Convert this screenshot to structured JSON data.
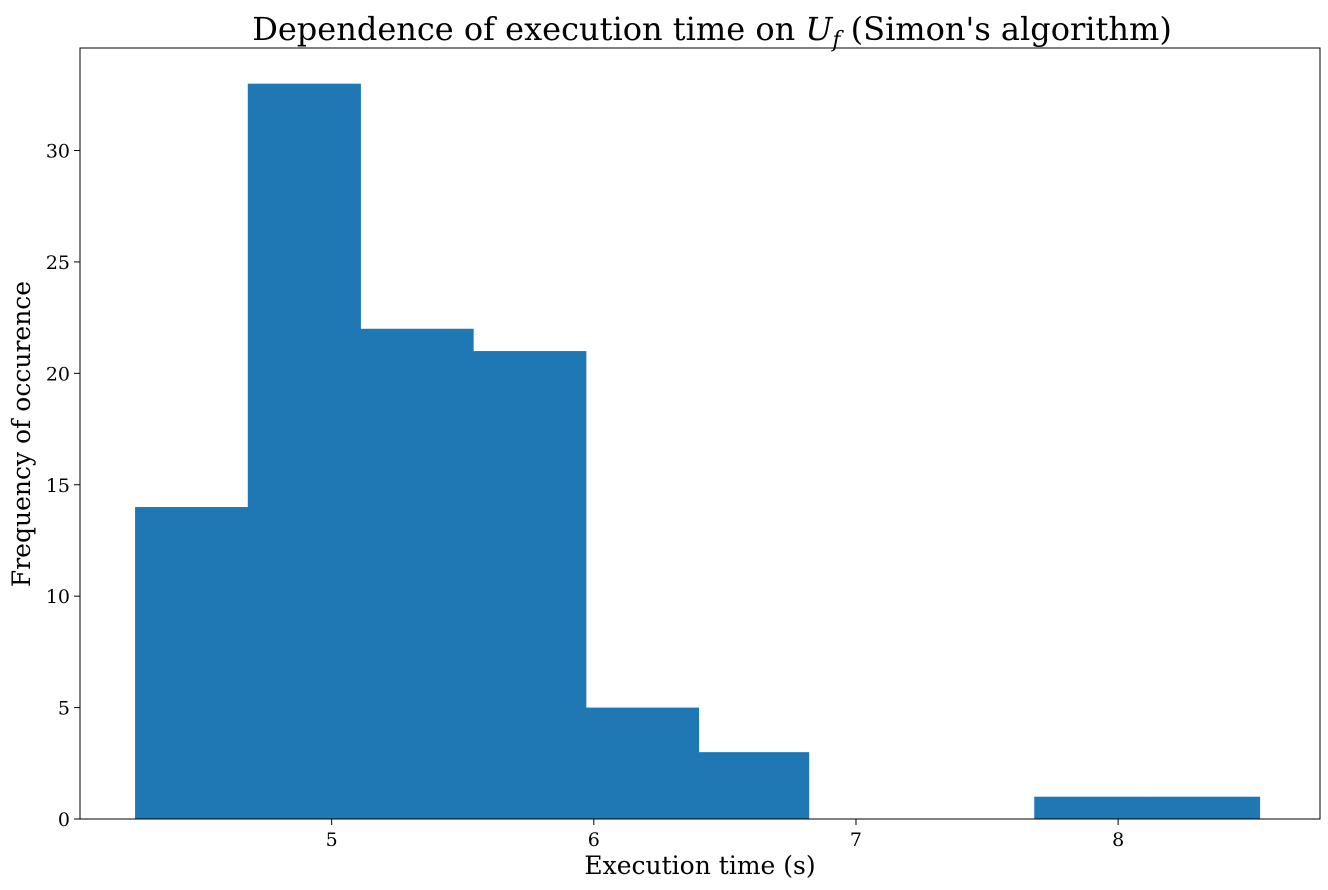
{
  "chart_data": {
    "type": "bar",
    "title_prefix": "Dependence of execution time on ",
    "title_math_main": "U",
    "title_math_sub": "f",
    "title_suffix": " (Simon's algorithm)",
    "xlabel": "Execution time (s)",
    "ylabel": "Frequency of occurence",
    "xlim": [
      4.04,
      8.77
    ],
    "ylim": [
      0,
      34.6
    ],
    "x_ticks": [
      5,
      6,
      7,
      8
    ],
    "y_ticks": [
      0,
      5,
      10,
      15,
      20,
      25,
      30
    ],
    "bin_edges": [
      4.25,
      4.68,
      5.11,
      5.54,
      5.97,
      6.4,
      6.82,
      7.25,
      7.68,
      8.11,
      8.54
    ],
    "values": [
      14,
      33,
      22,
      21,
      5,
      3,
      0,
      0,
      1,
      1
    ],
    "bar_color": "#1f77b4",
    "grid": false
  }
}
